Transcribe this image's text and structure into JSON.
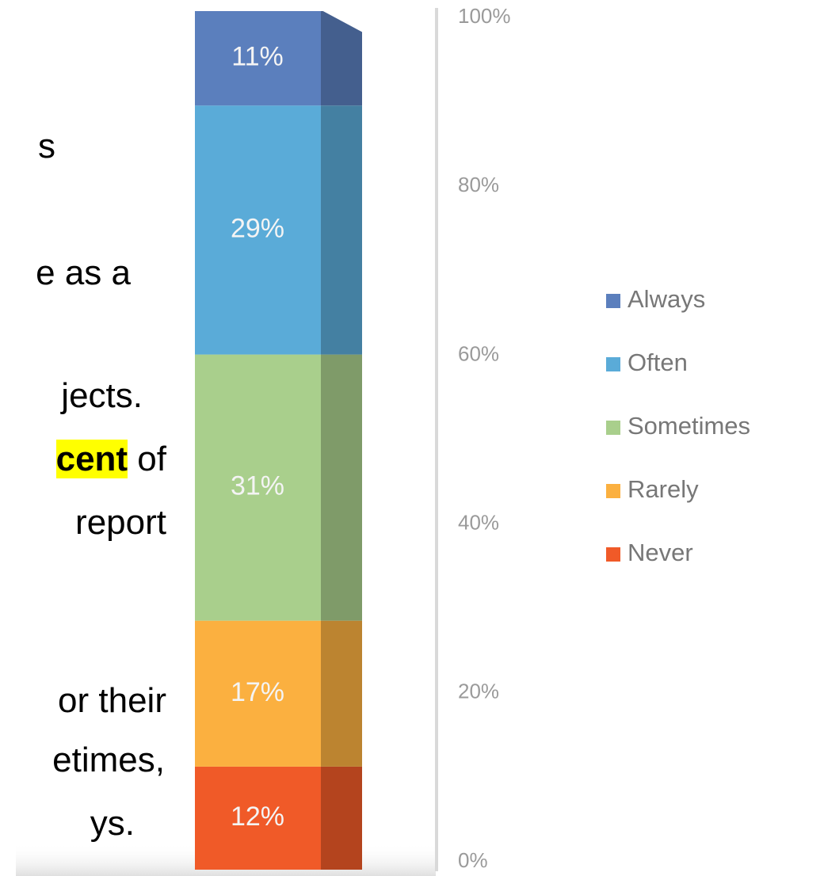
{
  "text_lines": [
    [
      {
        "text": "s"
      }
    ],
    [
      {
        "text": "e as a"
      }
    ],
    [
      {
        "text": "jects."
      }
    ],
    [
      {
        "text": "cent",
        "highlight": true
      },
      {
        "text": " of"
      }
    ],
    [
      {
        "text": "report"
      }
    ],
    [
      {
        "text": "or their"
      }
    ],
    [
      {
        "text": "etimes,"
      }
    ],
    [
      {
        "text": "ys."
      }
    ]
  ],
  "chart_data": {
    "type": "stacked_bar_3d",
    "categories": [
      null
    ],
    "series": [
      {
        "name": "Never",
        "color": "#f05a28",
        "values": [
          12
        ],
        "value_labels": [
          "12%"
        ]
      },
      {
        "name": "Rarely",
        "color": "#fbb040",
        "values": [
          17
        ],
        "value_labels": [
          "17%"
        ]
      },
      {
        "name": "Sometimes",
        "color": "#a9cf8c",
        "values": [
          31
        ],
        "value_labels": [
          "31%"
        ]
      },
      {
        "name": "Often",
        "color": "#5aabd8",
        "values": [
          29
        ],
        "value_labels": [
          "29%"
        ]
      },
      {
        "name": "Always",
        "color": "#5b7fbd",
        "values": [
          11
        ],
        "value_labels": [
          "11%"
        ]
      }
    ],
    "ylim": [
      0,
      100
    ],
    "yticks": [
      {
        "value": 0,
        "label": "0%"
      },
      {
        "value": 20,
        "label": "20%"
      },
      {
        "value": 40,
        "label": "40%"
      },
      {
        "value": 60,
        "label": "60%"
      },
      {
        "value": 80,
        "label": "80%"
      },
      {
        "value": 100,
        "label": "100%"
      }
    ],
    "legend": "right"
  }
}
